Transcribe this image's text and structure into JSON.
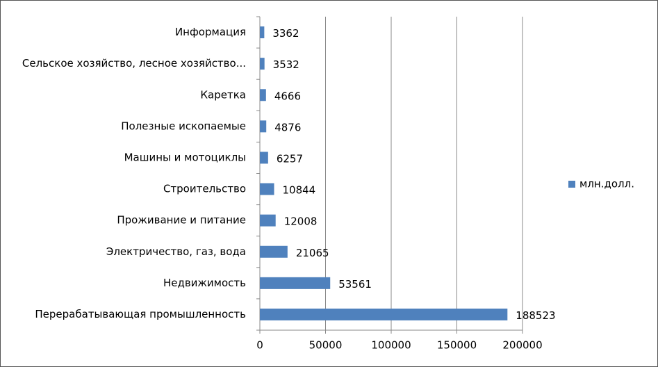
{
  "chart_data": {
    "type": "hbar",
    "categories": [
      "Информация",
      "Сельское хозяйство, лесное хозяйство...",
      "Каретка",
      "Полезные ископаемые",
      "Машины и мотоциклы",
      "Строительство",
      "Проживание и питание",
      "Электричество, газ, вода",
      "Недвижимость",
      "Перерабатывающая промышленность"
    ],
    "series": [
      {
        "name": "млн.долл.",
        "color": "#4f81bd",
        "values": [
          3362,
          3532,
          4666,
          4876,
          6257,
          10844,
          12008,
          21065,
          53561,
          188523
        ]
      }
    ],
    "xlim": [
      0,
      200000
    ],
    "xticks": [
      0,
      50000,
      100000,
      150000,
      200000
    ],
    "grid": true,
    "legend": "right"
  }
}
